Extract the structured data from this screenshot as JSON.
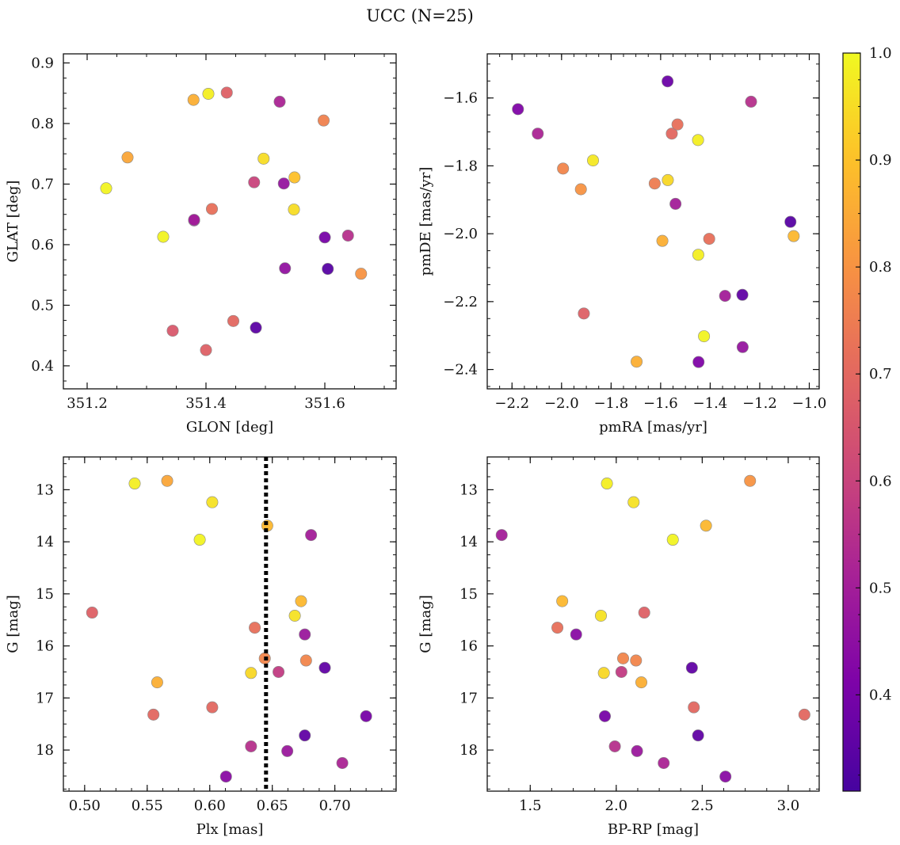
{
  "title": "UCC (N=25)",
  "colorbar": {
    "range": [
      0.31,
      1.0
    ],
    "ticks": [
      0.4,
      0.5,
      0.6,
      0.7,
      0.8,
      0.9,
      1.0
    ],
    "tick_labels": [
      "0.4",
      "0.5",
      "0.6",
      "0.7",
      "0.8",
      "0.9",
      "1.0"
    ],
    "colormap": "plasma"
  },
  "chart_data": [
    {
      "type": "scatter",
      "xlabel": "GLON [deg]",
      "ylabel": "GLAT [deg]",
      "xlim": [
        351.16,
        351.72
      ],
      "ylim": [
        0.362,
        0.915
      ],
      "y_inverted": false,
      "xticks": [
        351.2,
        351.4,
        351.6
      ],
      "xtick_labels": [
        "351.2",
        "351.4",
        "351.6"
      ],
      "yticks": [
        0.4,
        0.5,
        0.6,
        0.7,
        0.8,
        0.9
      ],
      "ytick_labels": [
        "0.4",
        "0.5",
        "0.6",
        "0.7",
        "0.8",
        "0.9"
      ],
      "points": [
        {
          "x": 351.404,
          "y": 0.849,
          "c": 0.98
        },
        {
          "x": 351.379,
          "y": 0.839,
          "c": 0.86
        },
        {
          "x": 351.435,
          "y": 0.851,
          "c": 0.68
        },
        {
          "x": 351.524,
          "y": 0.836,
          "c": 0.52
        },
        {
          "x": 351.598,
          "y": 0.805,
          "c": 0.76
        },
        {
          "x": 351.268,
          "y": 0.744,
          "c": 0.84
        },
        {
          "x": 351.497,
          "y": 0.742,
          "c": 0.95
        },
        {
          "x": 351.232,
          "y": 0.693,
          "c": 0.99
        },
        {
          "x": 351.481,
          "y": 0.703,
          "c": 0.6
        },
        {
          "x": 351.531,
          "y": 0.701,
          "c": 0.47
        },
        {
          "x": 351.549,
          "y": 0.711,
          "c": 0.9
        },
        {
          "x": 351.41,
          "y": 0.659,
          "c": 0.72
        },
        {
          "x": 351.548,
          "y": 0.658,
          "c": 0.95
        },
        {
          "x": 351.38,
          "y": 0.64,
          "c": 0.44
        },
        {
          "x": 351.328,
          "y": 0.613,
          "c": 0.99
        },
        {
          "x": 351.6,
          "y": 0.612,
          "c": 0.4
        },
        {
          "x": 351.639,
          "y": 0.615,
          "c": 0.55
        },
        {
          "x": 351.533,
          "y": 0.561,
          "c": 0.46
        },
        {
          "x": 351.605,
          "y": 0.56,
          "c": 0.34
        },
        {
          "x": 351.661,
          "y": 0.552,
          "c": 0.8
        },
        {
          "x": 351.446,
          "y": 0.474,
          "c": 0.7
        },
        {
          "x": 351.484,
          "y": 0.463,
          "c": 0.35
        },
        {
          "x": 351.344,
          "y": 0.458,
          "c": 0.66
        },
        {
          "x": 351.4,
          "y": 0.426,
          "c": 0.68
        },
        {
          "x": 351.38,
          "y": 0.641,
          "c": 0.5
        }
      ]
    },
    {
      "type": "scatter",
      "xlabel": "pmRA [mas/yr]",
      "ylabel": "pmDE [mas/yr]",
      "xlim": [
        -2.3,
        -0.96
      ],
      "ylim": [
        -2.457,
        -1.47
      ],
      "y_inverted": false,
      "xticks": [
        -2.2,
        -2.0,
        -1.8,
        -1.6,
        -1.4,
        -1.2,
        -1.0
      ],
      "xtick_labels": [
        "−2.2",
        "−2.0",
        "−1.8",
        "−1.6",
        "−1.4",
        "−1.2",
        "−1.0"
      ],
      "yticks": [
        -2.4,
        -2.2,
        -2.0,
        -1.8,
        -1.6
      ],
      "ytick_labels": [
        "−2.4",
        "−2.2",
        "−2.0",
        "−1.8",
        "−1.6"
      ],
      "points": [
        {
          "x": -1.572,
          "y": -1.551,
          "c": 0.38
        },
        {
          "x": -2.176,
          "y": -1.633,
          "c": 0.42
        },
        {
          "x": -1.235,
          "y": -1.611,
          "c": 0.55
        },
        {
          "x": -2.096,
          "y": -1.705,
          "c": 0.52
        },
        {
          "x": -1.555,
          "y": -1.705,
          "c": 0.7
        },
        {
          "x": -1.532,
          "y": -1.678,
          "c": 0.72
        },
        {
          "x": -1.449,
          "y": -1.724,
          "c": 0.98
        },
        {
          "x": -1.873,
          "y": -1.784,
          "c": 0.97
        },
        {
          "x": -1.994,
          "y": -1.808,
          "c": 0.77
        },
        {
          "x": -1.571,
          "y": -1.842,
          "c": 0.94
        },
        {
          "x": -1.624,
          "y": -1.852,
          "c": 0.75
        },
        {
          "x": -1.922,
          "y": -1.869,
          "c": 0.8
        },
        {
          "x": -1.54,
          "y": -1.912,
          "c": 0.5
        },
        {
          "x": -1.076,
          "y": -1.965,
          "c": 0.34
        },
        {
          "x": -1.063,
          "y": -2.007,
          "c": 0.88
        },
        {
          "x": -1.593,
          "y": -2.021,
          "c": 0.86
        },
        {
          "x": -1.404,
          "y": -2.015,
          "c": 0.72
        },
        {
          "x": -1.448,
          "y": -2.062,
          "c": 0.98
        },
        {
          "x": -1.34,
          "y": -2.183,
          "c": 0.5
        },
        {
          "x": -1.27,
          "y": -2.18,
          "c": 0.36
        },
        {
          "x": -1.91,
          "y": -2.235,
          "c": 0.68
        },
        {
          "x": -1.425,
          "y": -2.302,
          "c": 0.99
        },
        {
          "x": -1.269,
          "y": -2.334,
          "c": 0.47
        },
        {
          "x": -1.697,
          "y": -2.377,
          "c": 0.86
        },
        {
          "x": -1.447,
          "y": -2.378,
          "c": 0.42
        }
      ]
    },
    {
      "type": "scatter",
      "xlabel": "Plx [mas]",
      "ylabel": "G [mag]",
      "xlim": [
        0.483,
        0.749
      ],
      "ylim": [
        12.37,
        18.79
      ],
      "y_inverted": true,
      "xticks": [
        0.5,
        0.55,
        0.6,
        0.65,
        0.7
      ],
      "xtick_labels": [
        "0.50",
        "0.55",
        "0.60",
        "0.65",
        "0.70"
      ],
      "yticks": [
        13,
        14,
        15,
        16,
        17,
        18
      ],
      "ytick_labels": [
        "13",
        "14",
        "15",
        "16",
        "17",
        "18"
      ],
      "vline": {
        "x": 0.645,
        "style": "dotted"
      },
      "points": [
        {
          "x": 0.54,
          "y": 12.88,
          "c": 0.98
        },
        {
          "x": 0.566,
          "y": 12.83,
          "c": 0.84
        },
        {
          "x": 0.602,
          "y": 13.24,
          "c": 0.96
        },
        {
          "x": 0.646,
          "y": 13.69,
          "c": 0.88
        },
        {
          "x": 0.592,
          "y": 13.96,
          "c": 0.99
        },
        {
          "x": 0.681,
          "y": 13.87,
          "c": 0.5
        },
        {
          "x": 0.506,
          "y": 15.36,
          "c": 0.68
        },
        {
          "x": 0.673,
          "y": 15.14,
          "c": 0.88
        },
        {
          "x": 0.668,
          "y": 15.42,
          "c": 0.96
        },
        {
          "x": 0.636,
          "y": 15.65,
          "c": 0.72
        },
        {
          "x": 0.676,
          "y": 15.78,
          "c": 0.48
        },
        {
          "x": 0.644,
          "y": 16.24,
          "c": 0.77
        },
        {
          "x": 0.677,
          "y": 16.28,
          "c": 0.77
        },
        {
          "x": 0.692,
          "y": 16.42,
          "c": 0.36
        },
        {
          "x": 0.633,
          "y": 16.52,
          "c": 0.94
        },
        {
          "x": 0.655,
          "y": 16.5,
          "c": 0.58
        },
        {
          "x": 0.558,
          "y": 16.7,
          "c": 0.86
        },
        {
          "x": 0.602,
          "y": 17.18,
          "c": 0.7
        },
        {
          "x": 0.555,
          "y": 17.32,
          "c": 0.7
        },
        {
          "x": 0.725,
          "y": 17.35,
          "c": 0.4
        },
        {
          "x": 0.676,
          "y": 17.72,
          "c": 0.36
        },
        {
          "x": 0.633,
          "y": 17.93,
          "c": 0.55
        },
        {
          "x": 0.662,
          "y": 18.02,
          "c": 0.48
        },
        {
          "x": 0.706,
          "y": 18.25,
          "c": 0.52
        },
        {
          "x": 0.613,
          "y": 18.51,
          "c": 0.44
        }
      ]
    },
    {
      "type": "scatter",
      "xlabel": "BP-RP [mag]",
      "ylabel": "G [mag]",
      "xlim": [
        1.25,
        3.18
      ],
      "ylim": [
        12.37,
        18.79
      ],
      "y_inverted": true,
      "xticks": [
        1.5,
        2.0,
        2.5,
        3.0
      ],
      "xtick_labels": [
        "1.5",
        "2.0",
        "2.5",
        "3.0"
      ],
      "yticks": [
        13,
        14,
        15,
        16,
        17,
        18
      ],
      "ytick_labels": [
        "13",
        "14",
        "15",
        "16",
        "17",
        "18"
      ],
      "points": [
        {
          "x": 1.946,
          "y": 12.88,
          "c": 0.98
        },
        {
          "x": 2.778,
          "y": 12.83,
          "c": 0.8
        },
        {
          "x": 2.101,
          "y": 13.24,
          "c": 0.96
        },
        {
          "x": 2.522,
          "y": 13.69,
          "c": 0.88
        },
        {
          "x": 2.329,
          "y": 13.96,
          "c": 0.99
        },
        {
          "x": 1.334,
          "y": 13.87,
          "c": 0.5
        },
        {
          "x": 1.686,
          "y": 15.14,
          "c": 0.88
        },
        {
          "x": 1.911,
          "y": 15.42,
          "c": 0.96
        },
        {
          "x": 2.163,
          "y": 15.36,
          "c": 0.68
        },
        {
          "x": 1.658,
          "y": 15.65,
          "c": 0.72
        },
        {
          "x": 1.767,
          "y": 15.78,
          "c": 0.44
        },
        {
          "x": 2.04,
          "y": 16.24,
          "c": 0.77
        },
        {
          "x": 2.115,
          "y": 16.28,
          "c": 0.77
        },
        {
          "x": 1.928,
          "y": 16.52,
          "c": 0.94
        },
        {
          "x": 2.03,
          "y": 16.5,
          "c": 0.58
        },
        {
          "x": 2.146,
          "y": 16.7,
          "c": 0.86
        },
        {
          "x": 2.44,
          "y": 16.42,
          "c": 0.36
        },
        {
          "x": 2.451,
          "y": 17.18,
          "c": 0.7
        },
        {
          "x": 3.094,
          "y": 17.32,
          "c": 0.7
        },
        {
          "x": 1.934,
          "y": 17.35,
          "c": 0.4
        },
        {
          "x": 2.476,
          "y": 17.72,
          "c": 0.36
        },
        {
          "x": 1.992,
          "y": 17.93,
          "c": 0.55
        },
        {
          "x": 2.121,
          "y": 18.02,
          "c": 0.48
        },
        {
          "x": 2.276,
          "y": 18.25,
          "c": 0.52
        },
        {
          "x": 2.635,
          "y": 18.51,
          "c": 0.44
        }
      ]
    }
  ]
}
